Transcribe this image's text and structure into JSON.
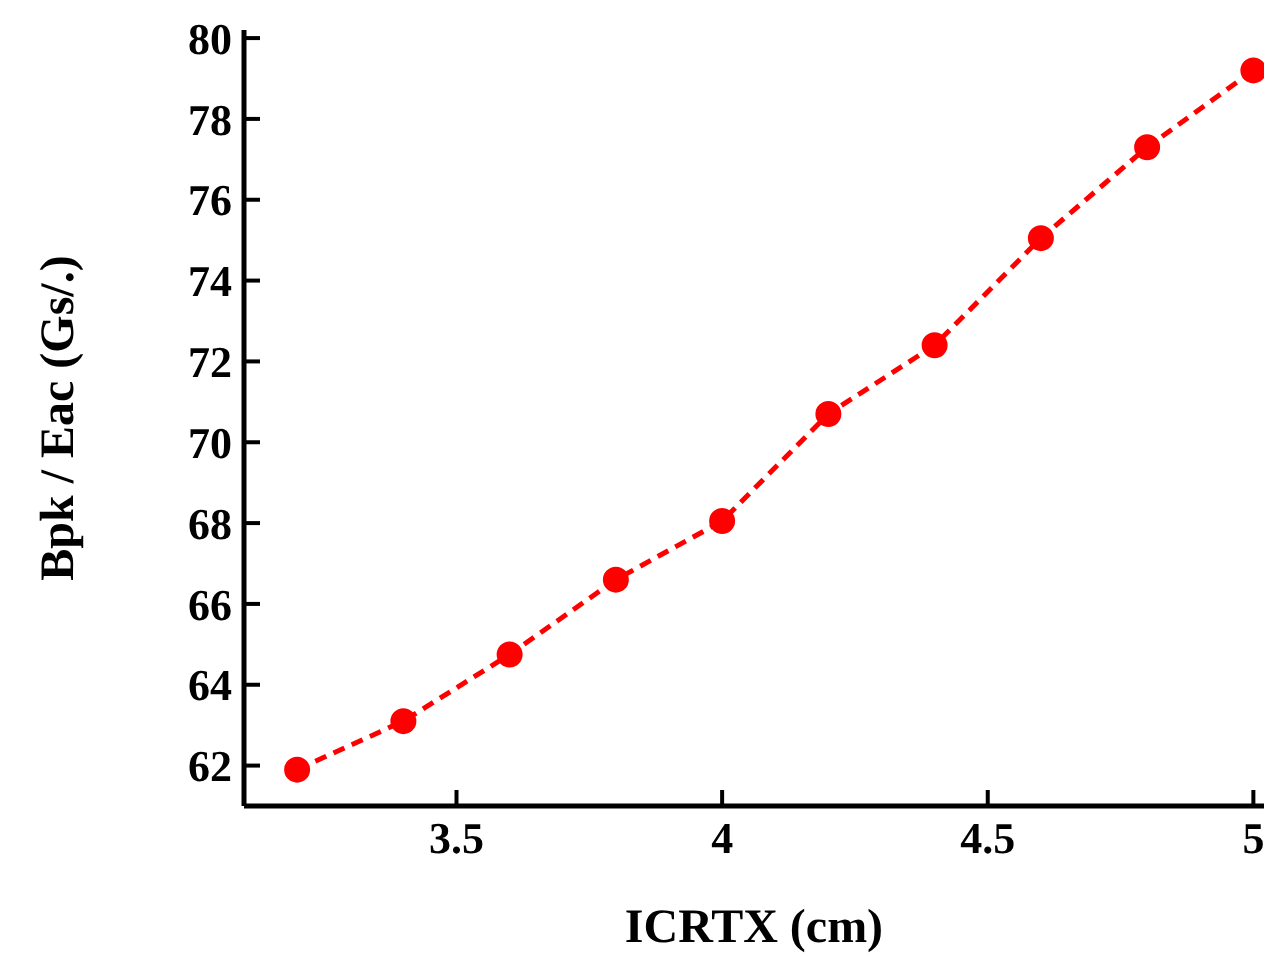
{
  "chart_data": {
    "type": "line",
    "xlabel": "ICRTX (cm)",
    "ylabel": "Bpk / Eac (Gs/.)",
    "x": [
      3.2,
      3.4,
      3.6,
      3.8,
      4.0,
      4.2,
      4.4,
      4.6,
      4.8,
      5.0
    ],
    "series": [
      {
        "color": "#ff0000",
        "values": [
          61.9,
          63.1,
          64.75,
          66.6,
          68.05,
          70.7,
          72.4,
          75.05,
          77.3,
          79.2
        ]
      }
    ],
    "xlim": [
      3.1,
      5.02
    ],
    "xticks": [
      3.5,
      4,
      4.5,
      5
    ],
    "ylim": [
      61,
      80.2
    ],
    "yticks": [
      62,
      64,
      66,
      68,
      70,
      72,
      74,
      76,
      78,
      80
    ],
    "grid": false,
    "legend": false,
    "marker": "circle",
    "line_style": "dashed"
  }
}
